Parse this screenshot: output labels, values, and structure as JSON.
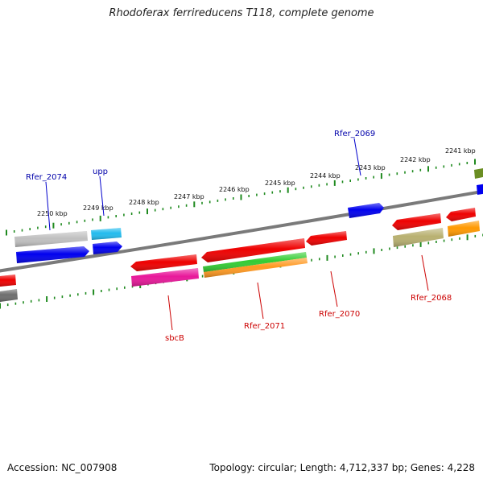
{
  "title": "Rhodoferax ferrireducens T118, complete genome",
  "accession_text": "Accession: NC_007908",
  "summary_text": "Topology: circular; Length: 4,712,337 bp; Genes: 4,228",
  "colors": {
    "backbone": "#7a7a7a",
    "tick": "#1f8a1f",
    "label_upper": "#0000aa",
    "label_lower": "#cc0000"
  },
  "scale_labels": [
    "2250 kbp",
    "2249 kbp",
    "2248 kbp",
    "2247 kbp",
    "2246 kbp",
    "2245 kbp",
    "2244 kbp",
    "2243 kbp",
    "2242 kbp",
    "2241 kbp"
  ],
  "gene_labels_upper": [
    "Rfer_2074",
    "upp",
    "Rfer_2069"
  ],
  "gene_labels_lower": [
    "sbcB",
    "Rfer_2071",
    "Rfer_2070",
    "Rfer_2068"
  ]
}
